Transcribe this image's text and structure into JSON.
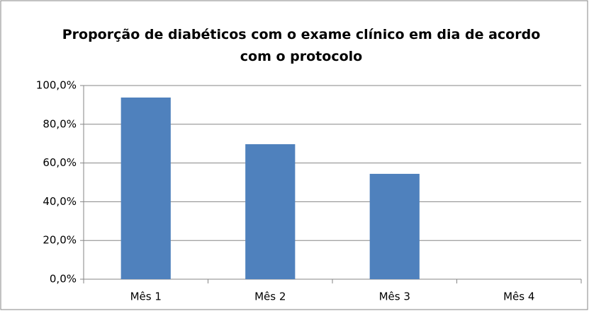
{
  "chart_data": {
    "type": "bar",
    "title": "Proporção de diabéticos com o exame clínico em dia de acordo com o protocolo",
    "categories": [
      "Mês 1",
      "Mês 2",
      "Mês 3",
      "Mês 4"
    ],
    "values": [
      93.8,
      69.7,
      54.4,
      0
    ],
    "color": "#4f81bd",
    "ylim": [
      0,
      100
    ],
    "yticks": [
      {
        "value": 0,
        "label": "0,0%"
      },
      {
        "value": 20,
        "label": "20,0%"
      },
      {
        "value": 40,
        "label": "40,0%"
      },
      {
        "value": 60,
        "label": "60,0%"
      },
      {
        "value": 80,
        "label": "80,0%"
      },
      {
        "value": 100,
        "label": "100,0%"
      }
    ],
    "grid": true
  }
}
